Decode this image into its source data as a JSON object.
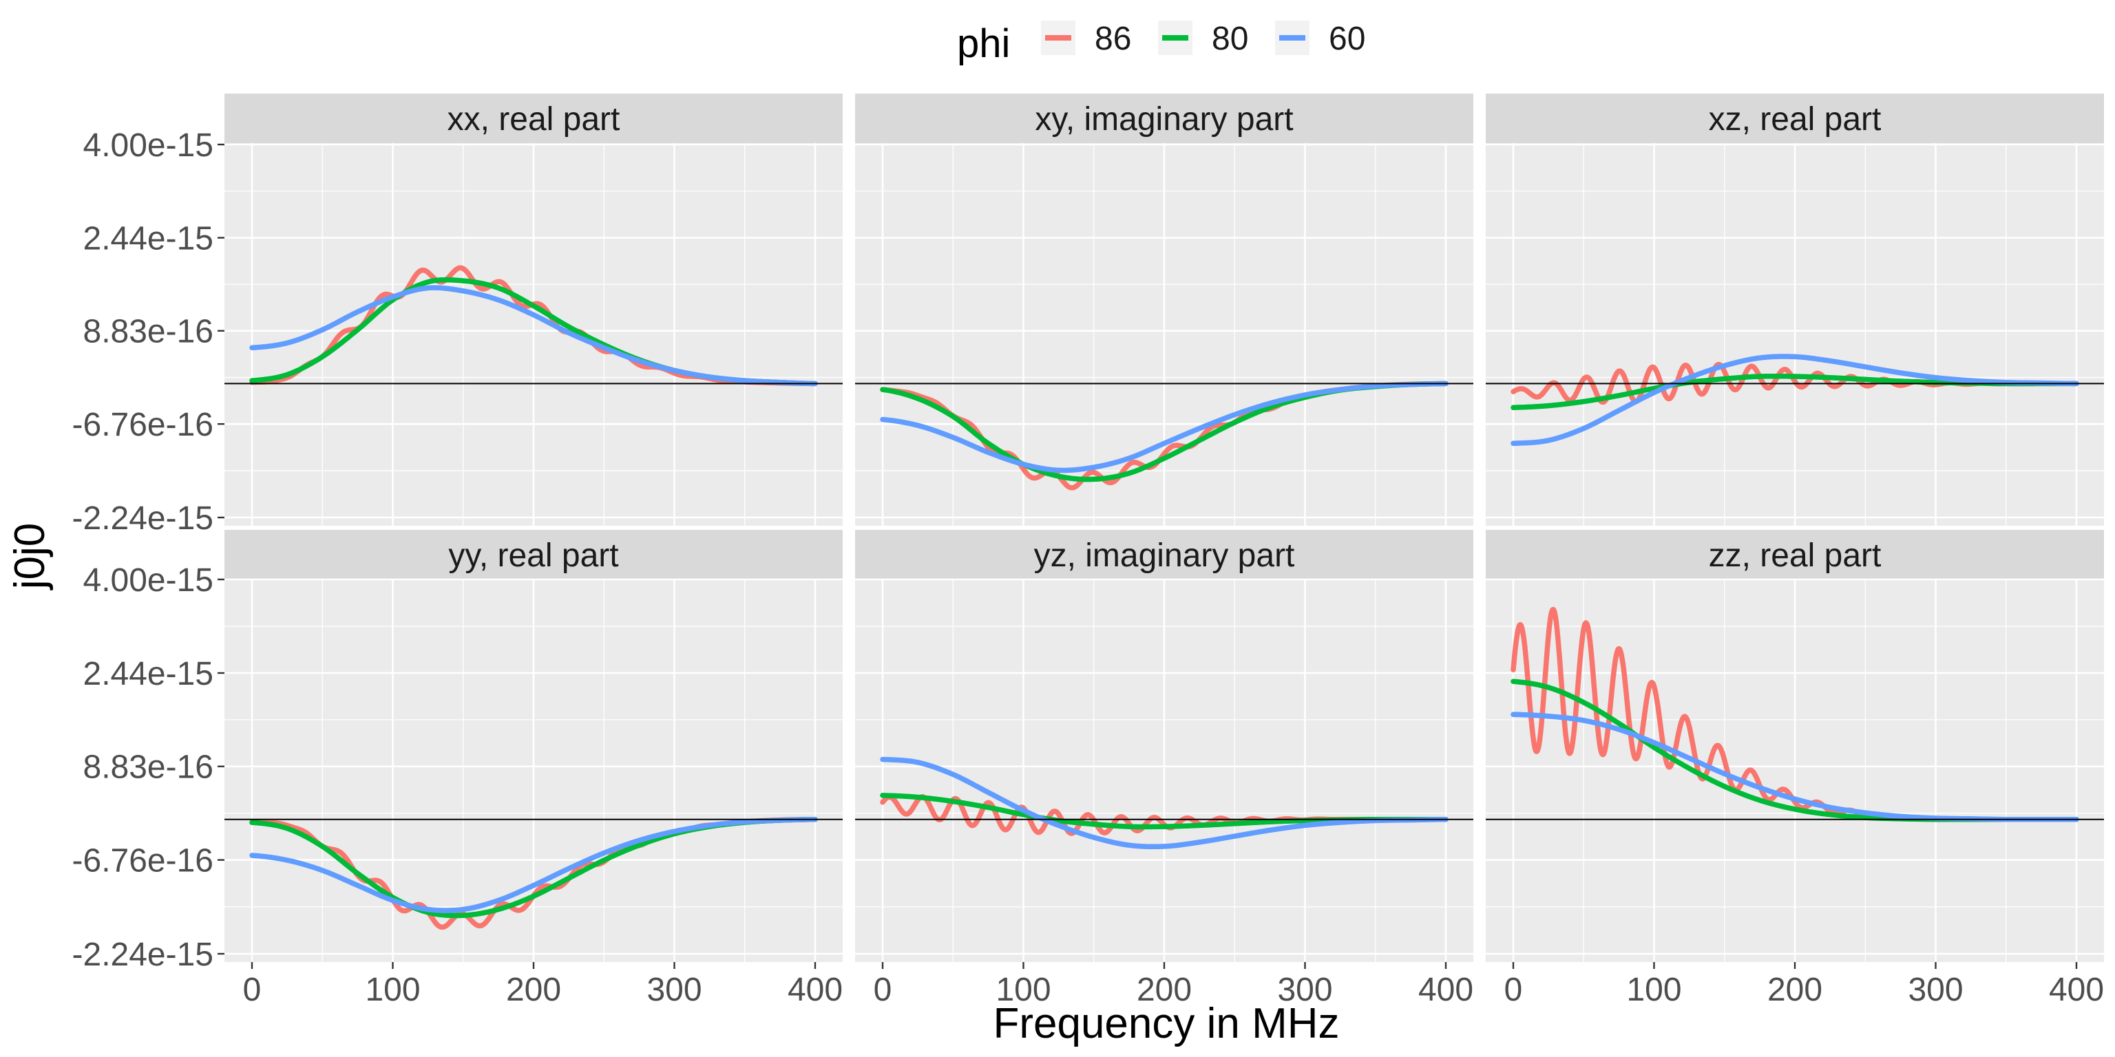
{
  "legend": {
    "title": "phi",
    "items": [
      {
        "label": "86",
        "color": "#F8766D"
      },
      {
        "label": "80",
        "color": "#00BA38"
      },
      {
        "label": "60",
        "color": "#619CFF"
      }
    ]
  },
  "chart_data": {
    "type": "line",
    "xlabel": "Frequency in MHz",
    "ylabel": "j0j0",
    "xlim": [
      0,
      400
    ],
    "xticks": [
      "0",
      "100",
      "200",
      "300",
      "400"
    ],
    "ylim": [
      -2.24e-15,
      4e-15
    ],
    "yticks": [
      {
        "value": 4e-15,
        "label": "4.00e-15"
      },
      {
        "value": 2.44e-15,
        "label": "2.44e-15"
      },
      {
        "value": 8.83e-16,
        "label": "8.83e-16"
      },
      {
        "value": -6.76e-16,
        "label": "-6.76e-16"
      },
      {
        "value": -2.24e-15,
        "label": "-2.24e-15"
      }
    ],
    "reference_line_y": 0,
    "grid": true,
    "legend_position": "top",
    "x": [
      0,
      25,
      50,
      75,
      100,
      125,
      150,
      175,
      200,
      225,
      250,
      275,
      300,
      325,
      350,
      375,
      400
    ],
    "panels": [
      {
        "title": "xx, real part",
        "series": [
          {
            "name": "86",
            "values": [
              2e-17,
              1e-16,
              5e-16,
              1e-15,
              1.5e-15,
              1.8e-15,
              1.8e-15,
              1.6e-15,
              1.3e-15,
              9e-16,
              6e-16,
              3.5e-16,
              1.8e-16,
              8e-17,
              3e-17,
              1e-17,
              0
            ],
            "oscillation": {
              "amplitude": [
                0,
                0,
                5e-17,
                9e-17,
                1.2e-16,
                1.3e-16,
                1.3e-16,
                1.2e-16,
                1e-16,
                8e-17,
                6e-17,
                4e-17,
                2e-17,
                1e-17,
                0,
                0,
                0
              ],
              "cycles": 14
            }
          },
          {
            "name": "80",
            "values": [
              5e-17,
              1.5e-16,
              4.5e-16,
              9e-16,
              1.4e-15,
              1.7e-15,
              1.72e-15,
              1.6e-15,
              1.3e-15,
              9.5e-16,
              6.5e-16,
              4e-16,
              2.2e-16,
              1.1e-16,
              5e-17,
              2e-17,
              0
            ]
          },
          {
            "name": "60",
            "values": [
              6e-16,
              6.8e-16,
              9e-16,
              1.2e-15,
              1.45e-15,
              1.6e-15,
              1.55e-15,
              1.4e-15,
              1.15e-15,
              8.5e-16,
              6e-16,
              3.8e-16,
              2.2e-16,
              1.1e-16,
              5e-17,
              2e-17,
              0
            ]
          }
        ]
      },
      {
        "title": "xy, imaginary part",
        "series": [
          {
            "name": "86",
            "values": [
              -1e-16,
              -2e-16,
              -5e-16,
              -1e-15,
              -1.4e-15,
              -1.6e-15,
              -1.6e-15,
              -1.45e-15,
              -1.2e-15,
              -9e-16,
              -6e-16,
              -4e-16,
              -2e-16,
              -1e-16,
              -4e-17,
              -1e-17,
              0
            ],
            "oscillation": {
              "amplitude": [
                0,
                0,
                4e-17,
                8e-17,
                1e-16,
                1.2e-16,
                1.2e-16,
                1.1e-16,
                9e-17,
                7e-17,
                5e-17,
                3e-17,
                1.5e-17,
                0,
                0,
                0,
                0
              ],
              "cycles": 14
            }
          },
          {
            "name": "80",
            "values": [
              -1e-16,
              -2.5e-16,
              -5.5e-16,
              -1e-15,
              -1.35e-15,
              -1.55e-15,
              -1.6e-15,
              -1.5e-15,
              -1.25e-15,
              -9.5e-16,
              -6.5e-16,
              -4e-16,
              -2.3e-16,
              -1.1e-16,
              -5e-17,
              -1.5e-17,
              0
            ]
          },
          {
            "name": "60",
            "values": [
              -6e-16,
              -7e-16,
              -9e-16,
              -1.15e-15,
              -1.35e-15,
              -1.45e-15,
              -1.4e-15,
              -1.25e-15,
              -1e-15,
              -7.5e-16,
              -5.2e-16,
              -3.3e-16,
              -1.9e-16,
              -1e-16,
              -4e-17,
              -1.5e-17,
              0
            ]
          }
        ]
      },
      {
        "title": "xz, real part",
        "series": [
          {
            "name": "86",
            "values": [
              -1.5e-16,
              -1.2e-16,
              -1e-16,
              -5e-17,
              0,
              5e-17,
              1e-16,
              1e-16,
              8e-17,
              5e-17,
              3e-17,
              1e-17,
              0,
              0,
              0,
              0,
              0
            ],
            "oscillation": {
              "amplitude": [
                5e-17,
                1.2e-16,
                2e-16,
                2.6e-16,
                2.8e-16,
                2.6e-16,
                2.2e-16,
                1.8e-16,
                1.4e-16,
                1e-16,
                7e-17,
                4e-17,
                2e-17,
                1e-17,
                0,
                0,
                0
              ],
              "cycles": 17
            }
          },
          {
            "name": "80",
            "values": [
              -4e-16,
              -3.7e-16,
              -3e-16,
              -2e-16,
              -8e-17,
              2e-17,
              8e-17,
              1.2e-16,
              1.2e-16,
              1e-16,
              7e-17,
              4e-17,
              2e-17,
              1e-17,
              0,
              0,
              0
            ]
          },
          {
            "name": "60",
            "values": [
              -1e-15,
              -9.5e-16,
              -7.5e-16,
              -4.5e-16,
              -1.5e-16,
              1e-16,
              3e-16,
              4.3e-16,
              4.5e-16,
              3.8e-16,
              2.8e-16,
              1.8e-16,
              1e-16,
              5e-17,
              2e-17,
              1e-17,
              0
            ]
          }
        ]
      },
      {
        "title": "yy, real part",
        "series": [
          {
            "name": "86",
            "values": [
              -5e-17,
              -1e-16,
              -4e-16,
              -8.5e-16,
              -1.3e-15,
              -1.6e-15,
              -1.7e-15,
              -1.55e-15,
              -1.3e-15,
              -9.5e-16,
              -6.5e-16,
              -4e-16,
              -2.2e-16,
              -1e-16,
              -4e-17,
              -1e-17,
              0
            ],
            "oscillation": {
              "amplitude": [
                0,
                0,
                5e-17,
                9e-17,
                1.2e-16,
                1.3e-16,
                1.3e-16,
                1.2e-16,
                1e-16,
                8e-17,
                6e-17,
                4e-17,
                2e-17,
                1e-17,
                0,
                0,
                0
              ],
              "cycles": 14
            }
          },
          {
            "name": "80",
            "values": [
              -5e-17,
              -1.5e-16,
              -4.5e-16,
              -9e-16,
              -1.3e-15,
              -1.55e-15,
              -1.6e-15,
              -1.5e-15,
              -1.28e-15,
              -9.8e-16,
              -6.8e-16,
              -4.3e-16,
              -2.4e-16,
              -1.2e-16,
              -5e-17,
              -1.5e-17,
              0
            ]
          },
          {
            "name": "60",
            "values": [
              -6e-16,
              -6.8e-16,
              -8.5e-16,
              -1.1e-15,
              -1.35e-15,
              -1.5e-15,
              -1.5e-15,
              -1.35e-15,
              -1.1e-15,
              -8.2e-16,
              -5.6e-16,
              -3.5e-16,
              -2e-16,
              -1e-16,
              -4e-17,
              -1.5e-17,
              0
            ]
          }
        ]
      },
      {
        "title": "yz, imaginary part",
        "series": [
          {
            "name": "86",
            "values": [
              2.5e-16,
              2.2e-16,
              1.5e-16,
              7e-17,
              0,
              -5e-17,
              -8e-17,
              -8e-17,
              -6e-17,
              -4e-17,
              -2e-17,
              -1e-17,
              0,
              0,
              0,
              0,
              0
            ],
            "oscillation": {
              "amplitude": [
                1.2e-16,
                1.6e-16,
                2e-16,
                2.1e-16,
                2e-16,
                1.8e-16,
                1.5e-16,
                1.2e-16,
                9e-17,
                6e-17,
                4e-17,
                2e-17,
                1e-17,
                0,
                0,
                0,
                0
              ],
              "cycles": 17
            }
          },
          {
            "name": "80",
            "values": [
              4e-16,
              3.7e-16,
              3e-16,
              2e-16,
              8e-17,
              -2e-17,
              -8e-17,
              -1.2e-16,
              -1.2e-16,
              -1e-16,
              -7e-17,
              -4e-17,
              -2e-17,
              -1e-17,
              0,
              0,
              0
            ]
          },
          {
            "name": "60",
            "values": [
              1e-15,
              9.5e-16,
              7.5e-16,
              4.5e-16,
              1.5e-16,
              -1e-16,
              -3e-16,
              -4.3e-16,
              -4.5e-16,
              -3.8e-16,
              -2.8e-16,
              -1.8e-16,
              -1e-16,
              -5e-17,
              -2e-17,
              -1e-17,
              0
            ]
          }
        ]
      },
      {
        "title": "zz, real part",
        "series": [
          {
            "name": "86",
            "values": [
              2.2e-15,
              2.3e-15,
              2.2e-15,
              1.95e-15,
              1.6e-15,
              1.2e-15,
              8.5e-16,
              5.5e-16,
              3.2e-16,
              1.7e-16,
              8e-17,
              3e-17,
              1e-17,
              0,
              0,
              0,
              0
            ],
            "oscillation": {
              "amplitude": [
                1e-15,
                1.2e-15,
                1.1e-15,
                9e-16,
                6.5e-16,
                4.5e-16,
                3e-16,
                1.8e-16,
                1e-16,
                6e-17,
                3e-17,
                1e-17,
                0,
                0,
                0,
                0,
                0
              ],
              "cycles": 17
            }
          },
          {
            "name": "80",
            "values": [
              2.3e-15,
              2.2e-15,
              1.95e-15,
              1.6e-15,
              1.2e-15,
              8.5e-16,
              5.5e-16,
              3.2e-16,
              1.7e-16,
              8e-17,
              3e-17,
              1e-17,
              0,
              0,
              0,
              0,
              0
            ]
          },
          {
            "name": "60",
            "values": [
              1.75e-15,
              1.72e-15,
              1.65e-15,
              1.5e-15,
              1.28e-15,
              1.02e-15,
              7.6e-16,
              5.3e-16,
              3.4e-16,
              2e-16,
              1.1e-16,
              5e-17,
              2e-17,
              1e-17,
              0,
              0,
              0
            ]
          }
        ]
      }
    ]
  }
}
